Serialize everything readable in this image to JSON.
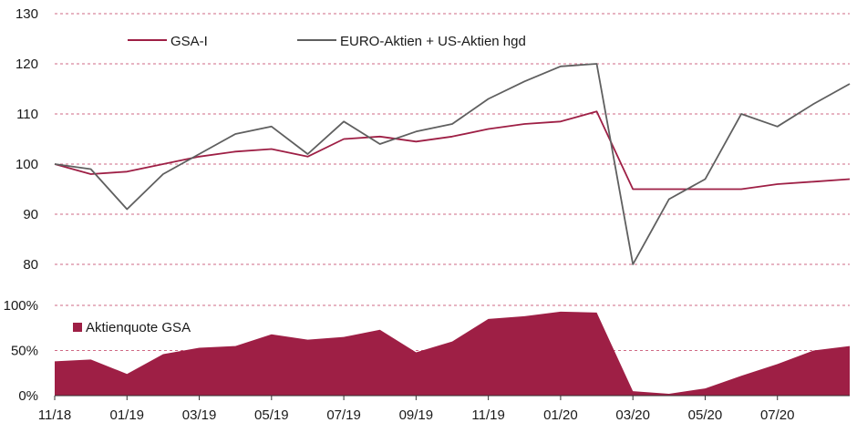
{
  "colors": {
    "gsa": "#9e1f45",
    "euro_us": "#5f5f5f",
    "area": "#9e1f45",
    "grid": "#c0385e",
    "axis": "#333333"
  },
  "chart_data": [
    {
      "type": "line",
      "title": "",
      "xlabel": "",
      "ylabel": "",
      "ylim": [
        80,
        130
      ],
      "yticks": [
        "80",
        "90",
        "100",
        "110",
        "120",
        "130"
      ],
      "grid": "horizontal dashed",
      "legend": "top-left",
      "x": [
        "11/18",
        "12/18",
        "01/19",
        "02/19",
        "03/19",
        "04/19",
        "05/19",
        "06/19",
        "07/19",
        "08/19",
        "09/19",
        "10/19",
        "11/19",
        "12/19",
        "01/20",
        "02/20",
        "03/20",
        "04/20",
        "05/20",
        "06/20",
        "07/20",
        "08/20",
        "09/20"
      ],
      "series": [
        {
          "name": "GSA-I",
          "color_key": "gsa",
          "values": [
            100,
            98,
            98.5,
            100,
            101.5,
            102.5,
            103,
            101.5,
            105,
            105.5,
            104.5,
            105.5,
            107,
            108,
            108.5,
            110.5,
            95,
            95,
            95,
            95,
            96,
            96.5,
            97
          ]
        },
        {
          "name": "EURO-Aktien + US-Aktien hgd",
          "color_key": "euro_us",
          "values": [
            100,
            99,
            91,
            98,
            102,
            106,
            107.5,
            102,
            108.5,
            104,
            106.5,
            108,
            113,
            116.5,
            119.5,
            120,
            80,
            93,
            97,
            110,
            107.5,
            112,
            116
          ]
        }
      ]
    },
    {
      "type": "area",
      "title": "",
      "xlabel": "",
      "ylabel": "",
      "ylim": [
        0,
        100
      ],
      "yticks": [
        "0%",
        "50%",
        "100%"
      ],
      "xticks": [
        "11/18",
        "01/19",
        "03/19",
        "05/19",
        "07/19",
        "09/19",
        "11/19",
        "01/20",
        "03/20",
        "05/20",
        "07/20"
      ],
      "legend": "top-left",
      "x": [
        "11/18",
        "12/18",
        "01/19",
        "02/19",
        "03/19",
        "04/19",
        "05/19",
        "06/19",
        "07/19",
        "08/19",
        "09/19",
        "10/19",
        "11/19",
        "12/19",
        "01/20",
        "02/20",
        "03/20",
        "04/20",
        "05/20",
        "06/20",
        "07/20",
        "08/20",
        "09/20"
      ],
      "series": [
        {
          "name": "Aktienquote GSA",
          "color_key": "area",
          "values": [
            38,
            40,
            24,
            46,
            53,
            55,
            68,
            62,
            65,
            73,
            48,
            60,
            85,
            88,
            93,
            92,
            5,
            2,
            8,
            22,
            35,
            50,
            55
          ]
        }
      ]
    }
  ]
}
